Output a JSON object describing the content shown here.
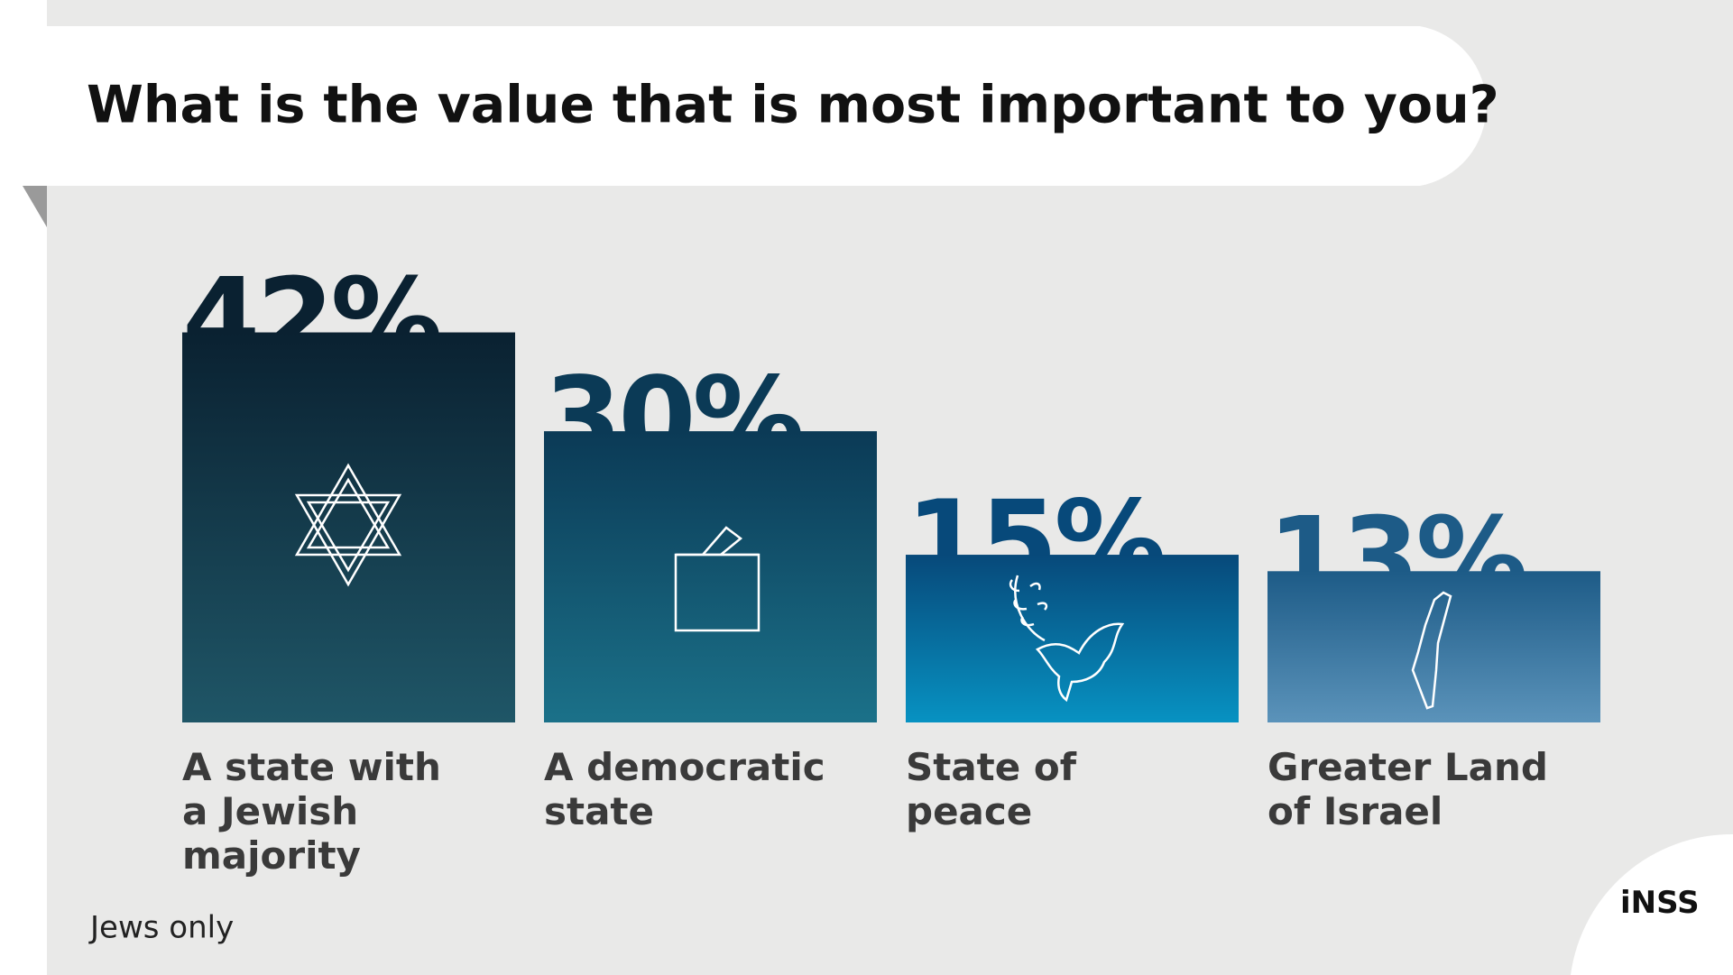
{
  "chart_data": {
    "type": "bar",
    "title": "What is the value that is most important to you?",
    "categories": [
      "A state with a Jewish majority",
      "A democratic state",
      "State of peace",
      "Greater Land of Israel"
    ],
    "values": [
      42,
      30,
      15,
      13
    ],
    "value_labels": [
      "42%",
      "30%",
      "15%",
      "13%"
    ],
    "colors": [
      [
        "#0a2131",
        "#1f5667"
      ],
      [
        "#0b3a56",
        "#1b7189"
      ],
      [
        "#07497a",
        "#0792c2"
      ],
      [
        "#1d5b87",
        "#5b93ba"
      ]
    ],
    "note": "Jews only",
    "logo": "iNSS"
  }
}
